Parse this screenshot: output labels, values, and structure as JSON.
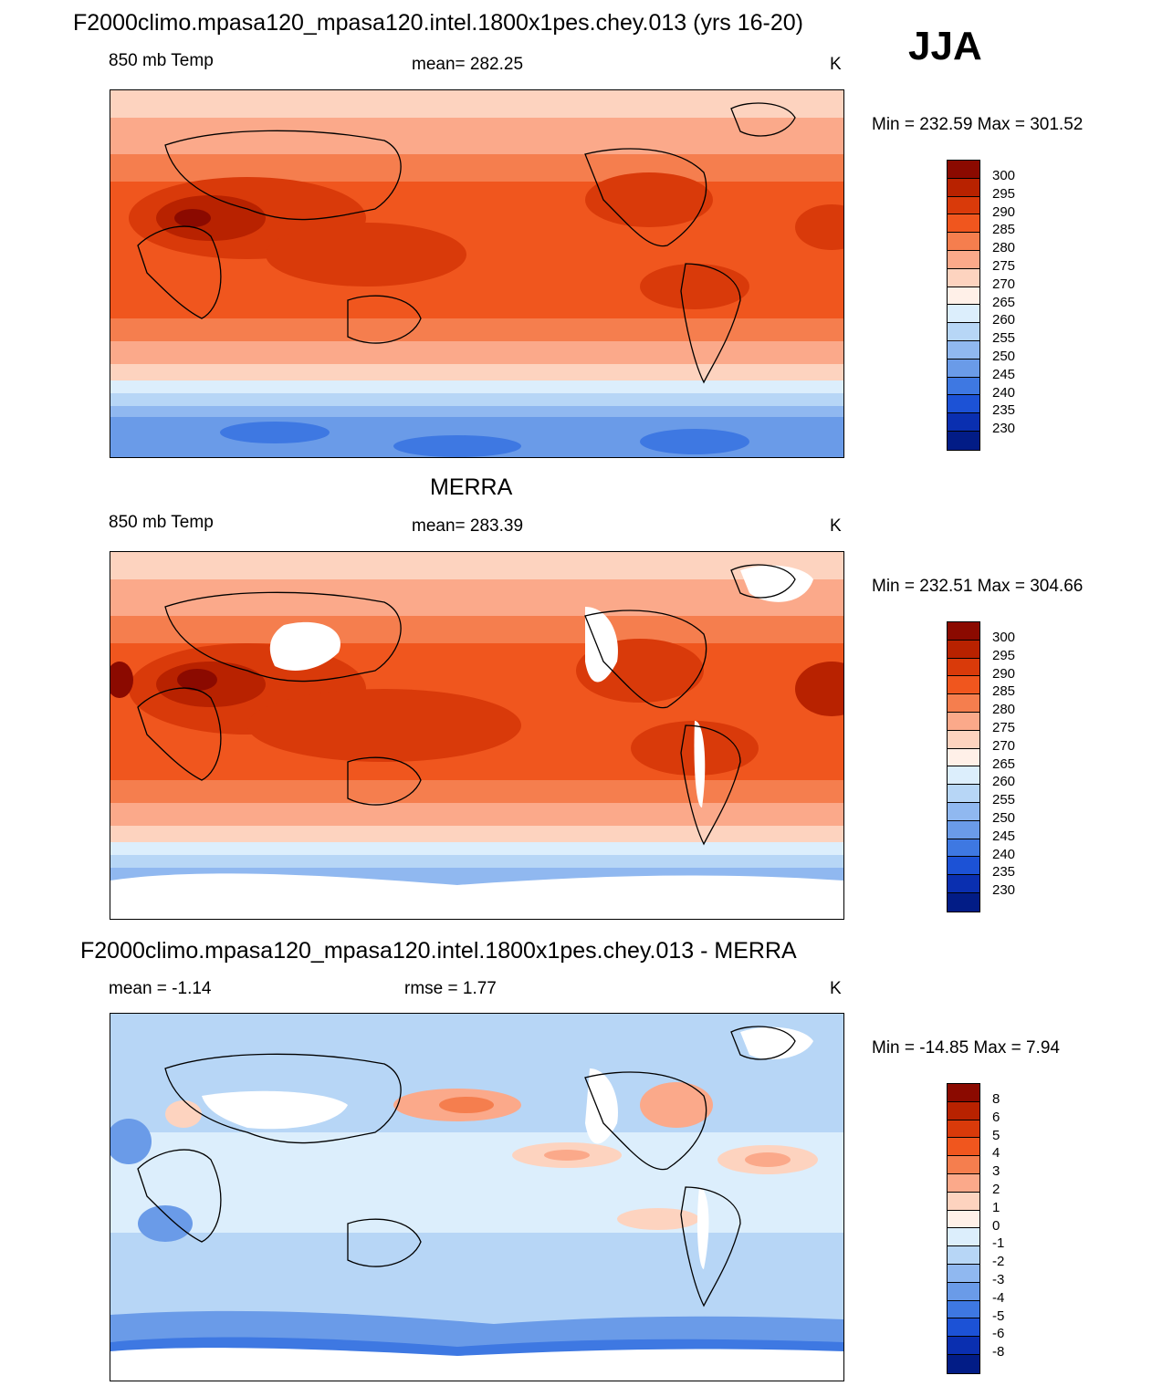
{
  "figure": {
    "season": "JJA",
    "units": "K"
  },
  "panels": [
    {
      "title": "F2000climo.mpasa120_mpasa120.intel.1800x1pes.chey.013 (yrs 16-20)",
      "variable": "850 mb Temp",
      "stat_label": "mean= 282.25",
      "units": "K",
      "minmax": "Min = 232.59 Max = 301.52",
      "colorbar_labels": [
        "300",
        "295",
        "290",
        "285",
        "280",
        "275",
        "270",
        "265",
        "260",
        "255",
        "250",
        "245",
        "240",
        "235",
        "230"
      ],
      "colors": [
        "#8b0a00",
        "#b82200",
        "#d93a0a",
        "#f0561e",
        "#f57e4e",
        "#fba98a",
        "#fdd3bf",
        "#fff0e8",
        "#dceefc",
        "#b7d6f6",
        "#90b8f0",
        "#6a9be8",
        "#3e78e2",
        "#1c52d6",
        "#0a2fb0",
        "#021c86"
      ]
    },
    {
      "title": "MERRA",
      "variable": "850 mb Temp",
      "stat_label": "mean= 283.39",
      "units": "K",
      "minmax": "Min = 232.51 Max = 304.66",
      "colorbar_labels": [
        "300",
        "295",
        "290",
        "285",
        "280",
        "275",
        "270",
        "265",
        "260",
        "255",
        "250",
        "245",
        "240",
        "235",
        "230"
      ],
      "colors": [
        "#8b0a00",
        "#b82200",
        "#d93a0a",
        "#f0561e",
        "#f57e4e",
        "#fba98a",
        "#fdd3bf",
        "#fff0e8",
        "#dceefc",
        "#b7d6f6",
        "#90b8f0",
        "#6a9be8",
        "#3e78e2",
        "#1c52d6",
        "#0a2fb0",
        "#021c86"
      ]
    },
    {
      "title": "F2000climo.mpasa120_mpasa120.intel.1800x1pes.chey.013 - MERRA",
      "variable": "mean =  -1.14",
      "stat_label": "rmse =   1.77",
      "units": "K",
      "minmax": "Min = -14.85 Max =   7.94",
      "colorbar_labels": [
        "8",
        "6",
        "5",
        "4",
        "3",
        "2",
        "1",
        "0",
        "-1",
        "-2",
        "-3",
        "-4",
        "-5",
        "-6",
        "-8"
      ],
      "colors": [
        "#8b0a00",
        "#b82200",
        "#d93a0a",
        "#f0561e",
        "#f57e4e",
        "#fba98a",
        "#fdd3bf",
        "#fff0e8",
        "#dceefc",
        "#b7d6f6",
        "#90b8f0",
        "#6a9be8",
        "#3e78e2",
        "#1c52d6",
        "#0a2fb0",
        "#021c86"
      ]
    }
  ]
}
